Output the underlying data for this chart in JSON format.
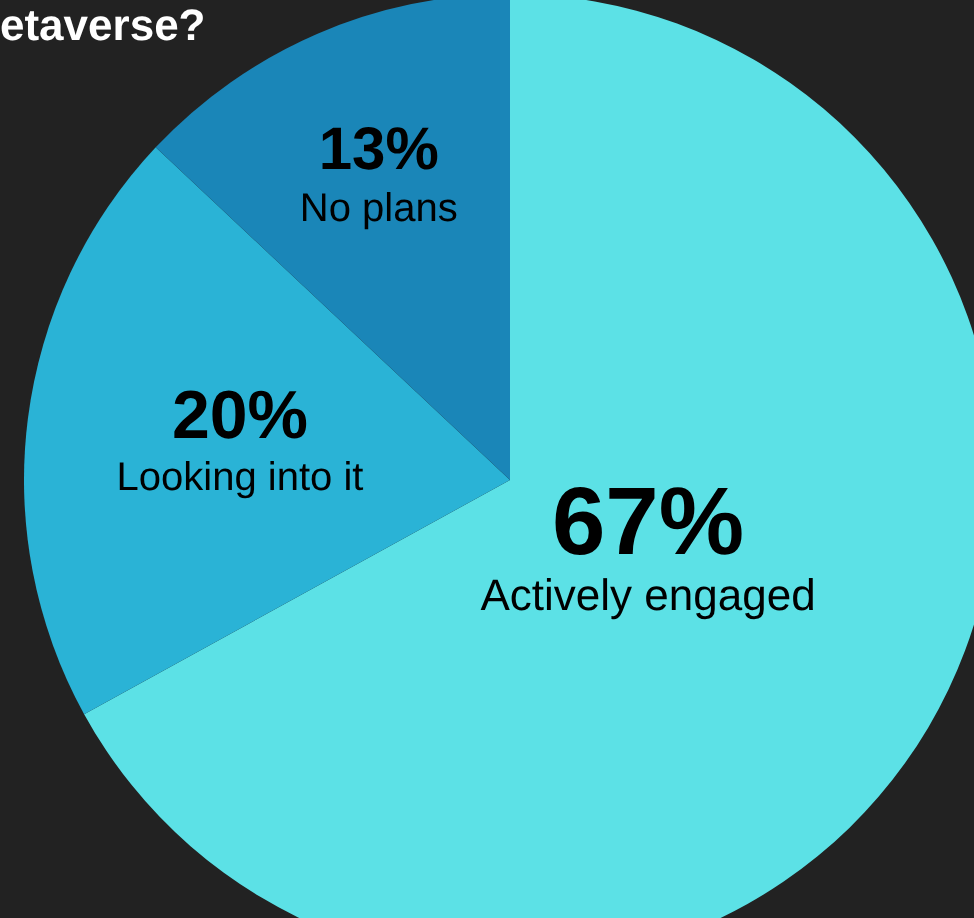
{
  "chart_data": {
    "type": "pie",
    "title": "etaverse?",
    "categories": [
      "Actively engaged",
      "Looking into it",
      "No plans"
    ],
    "values": [
      67,
      20,
      13
    ],
    "colors": [
      "#5ce1e6",
      "#2ab3d6",
      "#1a86b8"
    ],
    "value_labels": [
      "67%",
      "20%",
      "13%"
    ]
  }
}
